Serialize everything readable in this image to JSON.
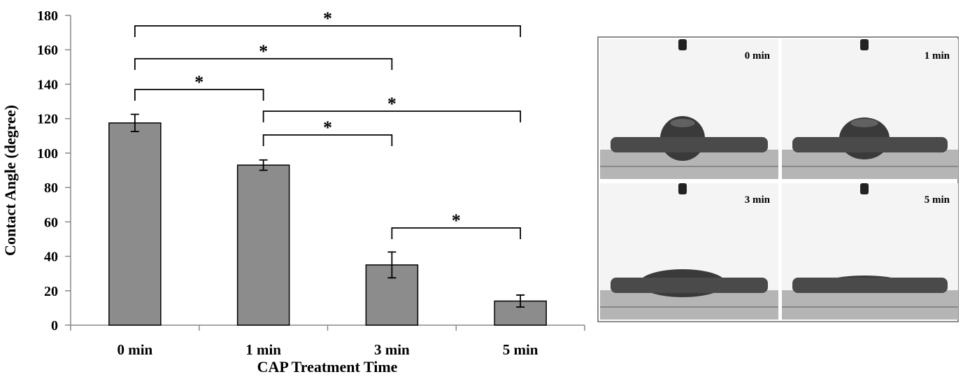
{
  "chart_data": {
    "type": "bar",
    "y_label": "Contact Angle (degree)",
    "x_label": "CAP Treatment Time",
    "categories": [
      "0 min",
      "1 min",
      "3 min",
      "5 min"
    ],
    "values": [
      117.5,
      93,
      35,
      14
    ],
    "errors": [
      5,
      3,
      7.5,
      3.5
    ],
    "color": "#8c8c8c",
    "ylim": [
      0,
      180
    ],
    "yticks": [
      0,
      20,
      40,
      60,
      80,
      100,
      120,
      140,
      160,
      180
    ],
    "annotations": [
      {
        "text": "*",
        "between": [
          "0 min",
          "5 min"
        ]
      },
      {
        "text": "*",
        "between": [
          "0 min",
          "3 min"
        ]
      },
      {
        "text": "*",
        "between": [
          "0 min",
          "1 min"
        ]
      },
      {
        "text": "*",
        "between": [
          "1 min",
          "5 min"
        ]
      },
      {
        "text": "*",
        "between": [
          "1 min",
          "3 min"
        ]
      },
      {
        "text": "*",
        "between": [
          "3 min",
          "5 min"
        ]
      }
    ]
  },
  "photo_labels": [
    "0 min",
    "1 min",
    "3 min",
    "5 min"
  ]
}
